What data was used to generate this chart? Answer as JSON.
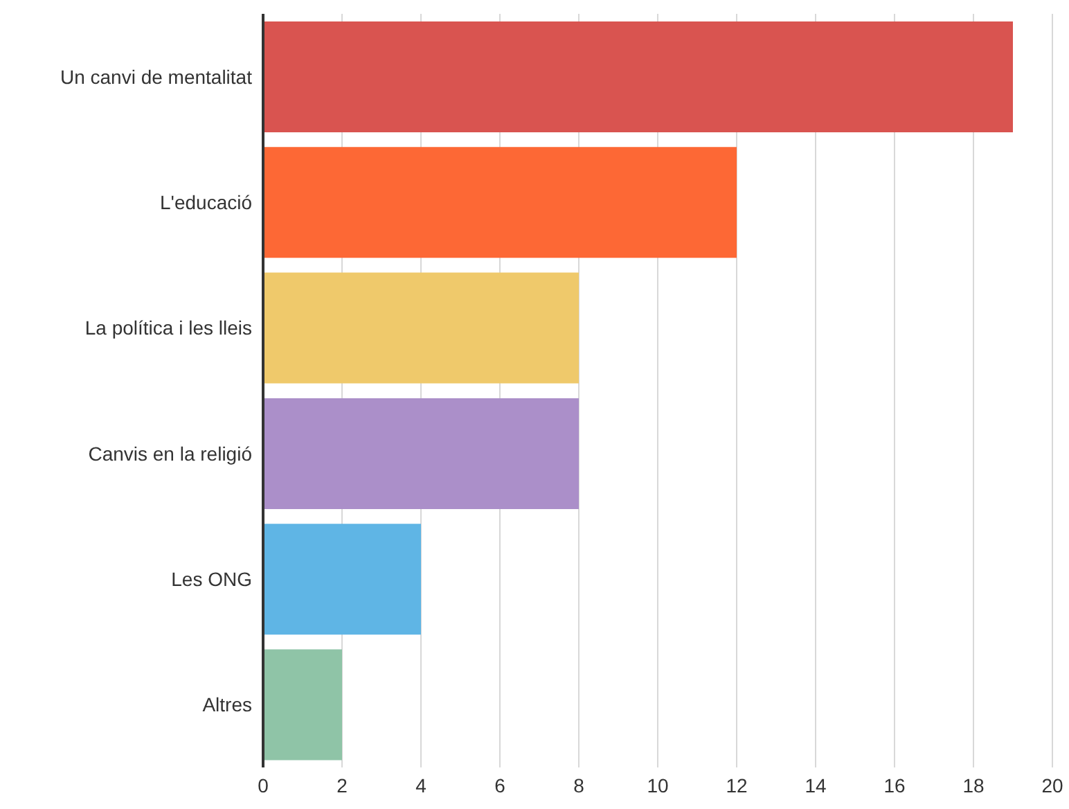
{
  "chart_data": {
    "type": "bar",
    "orientation": "horizontal",
    "categories": [
      "Un canvi de mentalitat",
      "L'educació",
      "La política i les lleis",
      "Canvis en la religió",
      "Les ONG",
      "Altres"
    ],
    "values": [
      19,
      12,
      8,
      8,
      4,
      2
    ],
    "colors": [
      "#d95450",
      "#fd6835",
      "#efc96b",
      "#ab8fc9",
      "#5fb5e5",
      "#8fc4a7"
    ],
    "xlim": [
      0,
      20
    ],
    "xticks": [
      0,
      2,
      4,
      6,
      8,
      10,
      12,
      14,
      16,
      18,
      20
    ],
    "grid": "x"
  }
}
